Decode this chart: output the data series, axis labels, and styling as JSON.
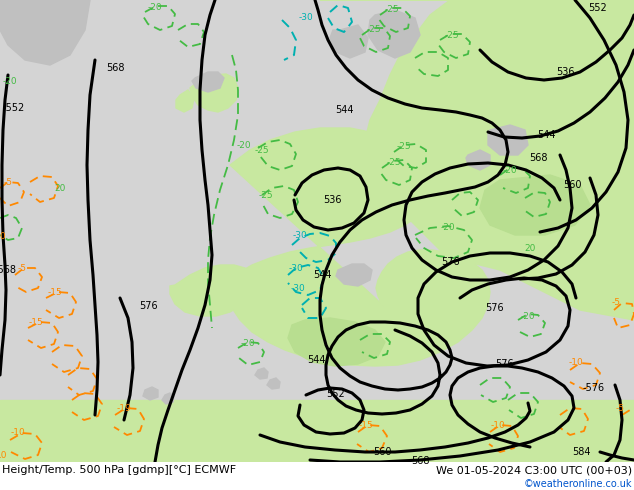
{
  "title_left": "Height/Temp. 500 hPa [gdmp][°C] ECMWF",
  "title_right": "We 01-05-2024 C3:00 UTC (00+03)",
  "watermark": "©weatheronline.co.uk",
  "figsize": [
    6.34,
    4.9
  ],
  "dpi": 100,
  "bg_ocean": "#d4d4d4",
  "bg_land": "#c8e8a0",
  "bg_land2": "#b8de90",
  "bg_gray": "#c0c0c0",
  "hc": "#000000",
  "hw": 2.2,
  "cc": "#00b0b0",
  "gc": "#44bb44",
  "wc": "#ff8800",
  "watermark_color": "#0055cc",
  "fs": 7.5
}
